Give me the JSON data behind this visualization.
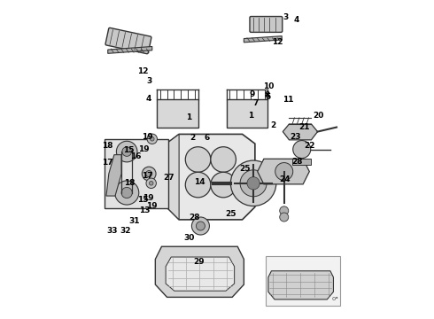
{
  "background_color": "#ffffff",
  "line_color": "#333333",
  "label_color": "#000000",
  "font_size": 6.5
}
